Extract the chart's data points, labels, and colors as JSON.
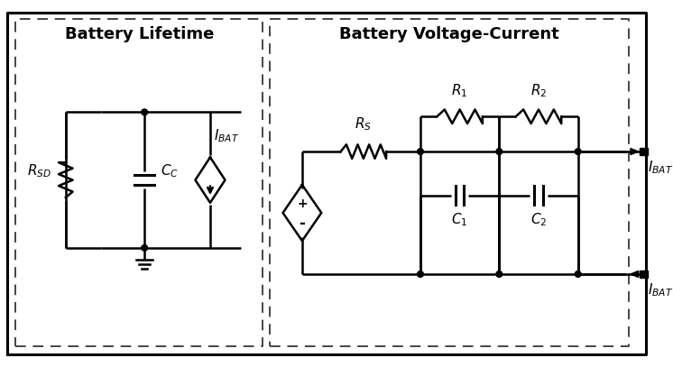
{
  "bg_color": "#ffffff",
  "line_color": "#000000",
  "left_label": "Battery Lifetime",
  "right_label": "Battery Voltage-Current",
  "label_font_size": 13
}
